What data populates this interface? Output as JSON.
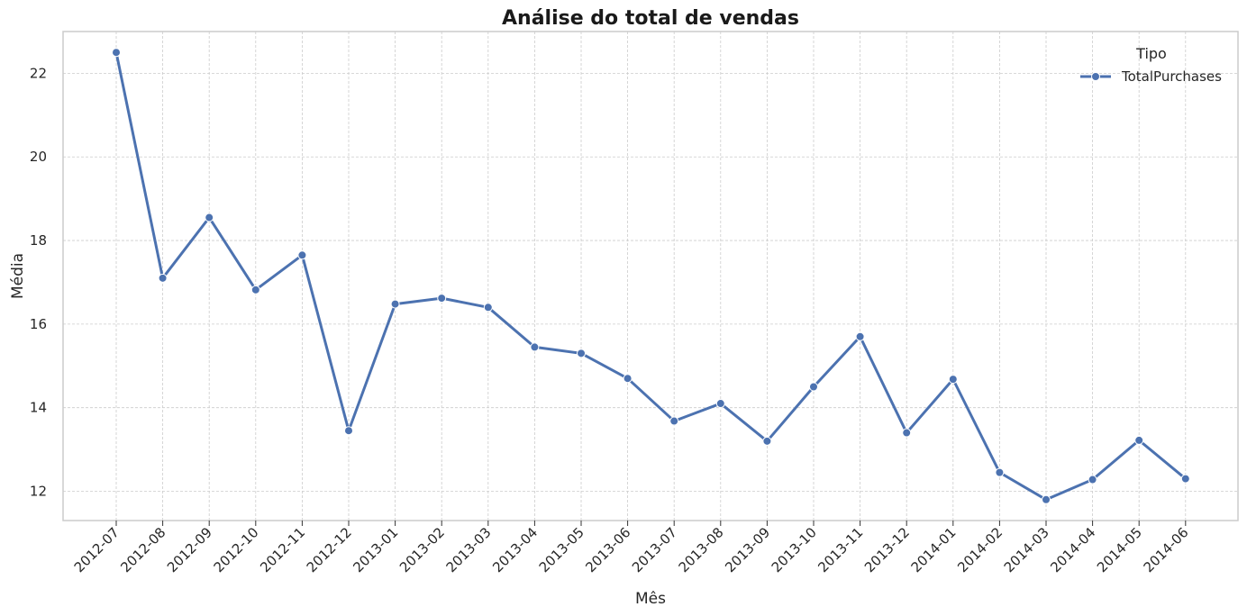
{
  "chart_data": {
    "type": "line",
    "title": "Análise do total de vendas",
    "xlabel": "Mês",
    "ylabel": "Média",
    "categories": [
      "2012-07",
      "2012-08",
      "2012-09",
      "2012-10",
      "2012-11",
      "2012-12",
      "2013-01",
      "2013-02",
      "2013-03",
      "2013-04",
      "2013-05",
      "2013-06",
      "2013-07",
      "2013-08",
      "2013-09",
      "2013-10",
      "2013-11",
      "2013-12",
      "2014-01",
      "2014-02",
      "2014-03",
      "2014-04",
      "2014-05",
      "2014-06"
    ],
    "series": [
      {
        "name": "TotalPurchases",
        "values": [
          22.5,
          17.1,
          18.55,
          16.82,
          17.65,
          13.45,
          16.48,
          16.62,
          16.4,
          15.45,
          15.3,
          14.7,
          13.68,
          14.1,
          13.2,
          14.5,
          15.7,
          13.4,
          14.68,
          12.45,
          11.8,
          12.28,
          13.22,
          12.3
        ],
        "color": "#4c72b0"
      }
    ],
    "ylim": [
      11.3,
      23.0
    ],
    "yticks": [
      12,
      14,
      16,
      18,
      20,
      22
    ],
    "grid": true,
    "legend": {
      "title": "Tipo",
      "position": "top-right"
    }
  }
}
